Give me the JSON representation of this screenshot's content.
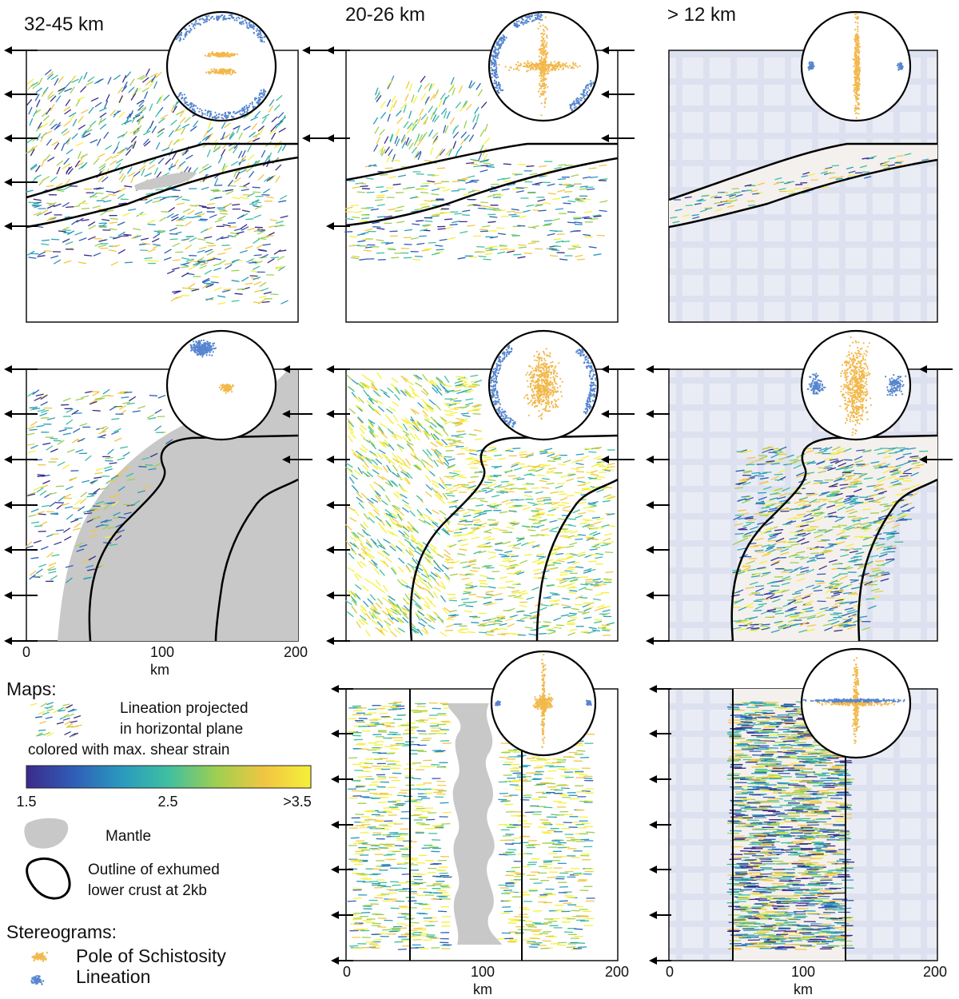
{
  "columns": [
    {
      "title": "32-45 km"
    },
    {
      "title": "20-26 km"
    },
    {
      "title": "> 12 km"
    }
  ],
  "axis": {
    "unit": "km",
    "ticks": [
      "0",
      "100",
      "200"
    ]
  },
  "legend": {
    "maps_heading": "Maps:",
    "lineation_text_1": "Lineation projected",
    "lineation_text_2": "in horizontal plane",
    "lineation_text_3": "colored with max. shear strain",
    "colorbar": {
      "min_label": "1.5",
      "mid_label": "2.5",
      "max_label": ">3.5",
      "colors": [
        "#3b2a8a",
        "#2f5fb8",
        "#2a9bbf",
        "#3fbfa0",
        "#9fcf50",
        "#f2c642",
        "#f5f03a"
      ]
    },
    "mantle_label": "Mantle",
    "outline_text_1": "Outline of exhumed",
    "outline_text_2": "lower crust at 2kb",
    "stereograms_heading": "Stereograms:",
    "pole_label": "Pole of Schistosity",
    "lineation_label": "Lineation"
  },
  "colors": {
    "mantle": "#c8c8c8",
    "outline": "#000000",
    "schistosity": "#f2b84b",
    "lineation": "#5585cf",
    "shaded_background": "#e4e7f3",
    "frame": "#111111"
  }
}
